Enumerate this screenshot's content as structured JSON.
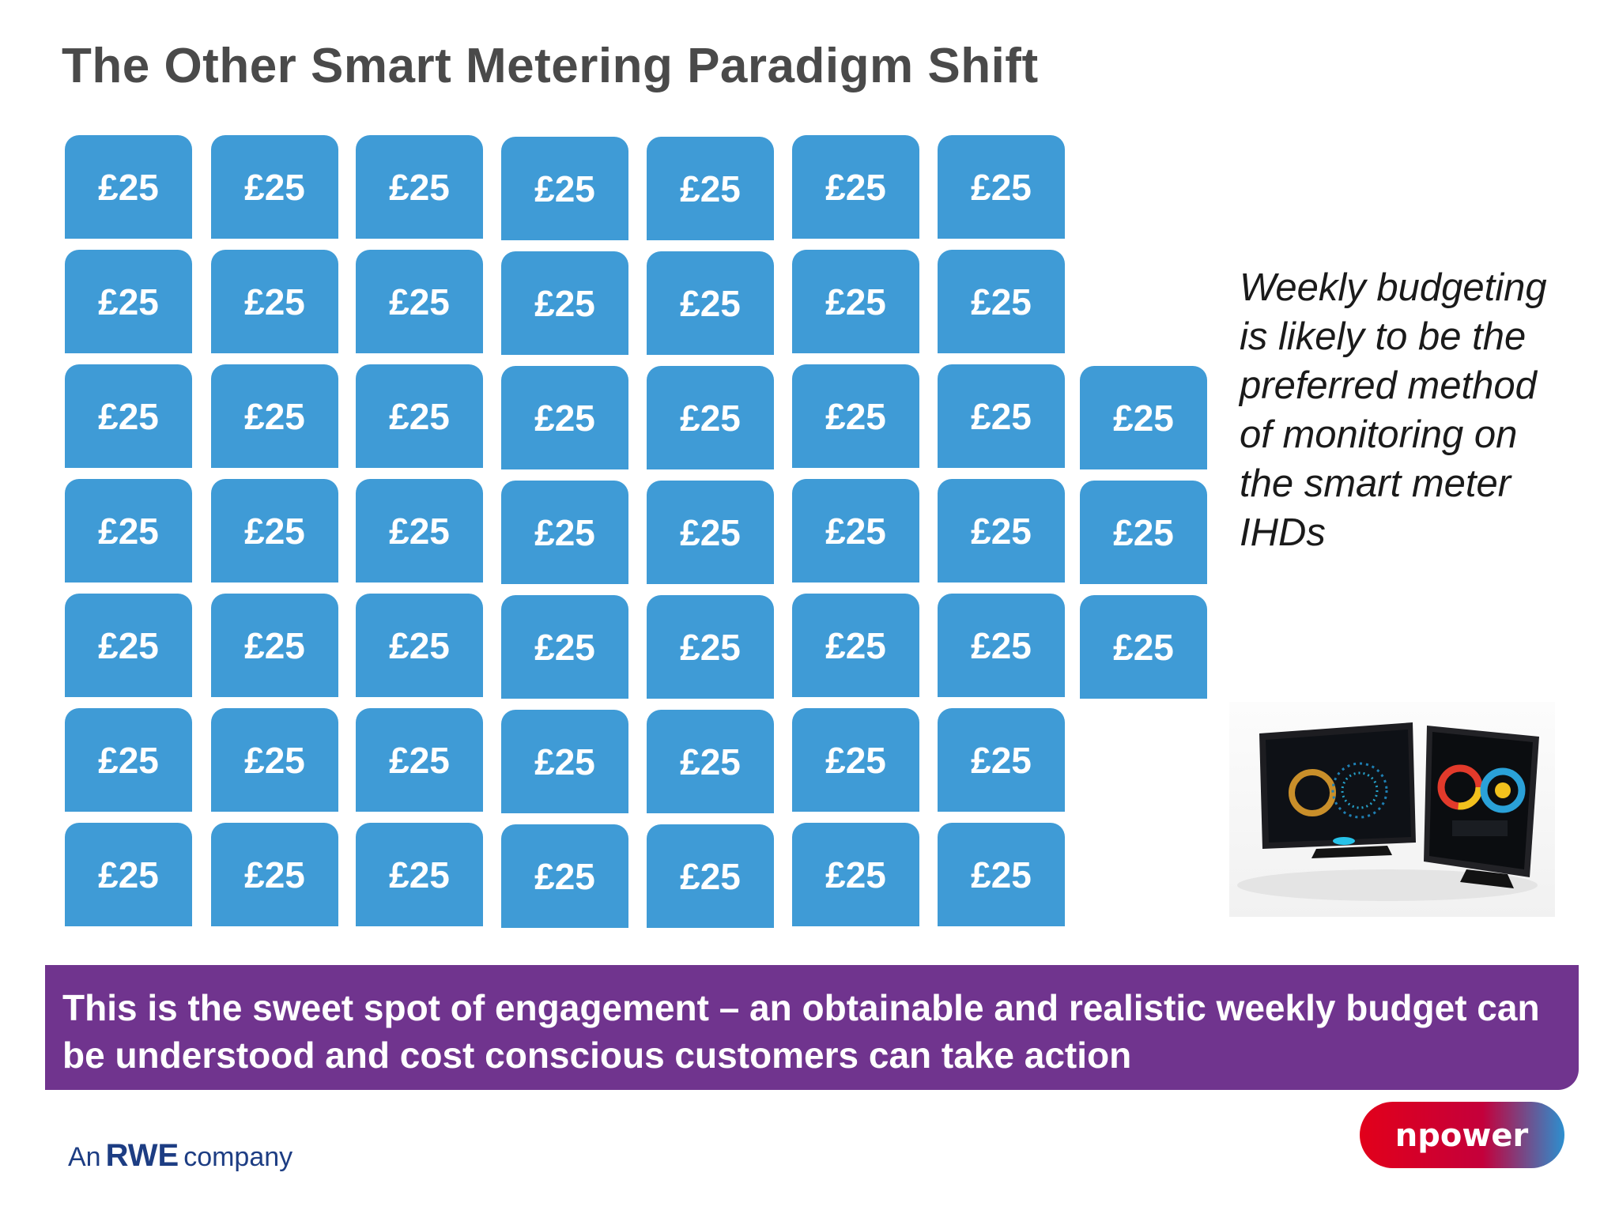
{
  "title": "The Other Smart Metering Paradigm Shift",
  "tile_label": "£25",
  "tile_color": "#3f9bd6",
  "grid": {
    "rows": 7,
    "columns": 8,
    "row_counts": [
      7,
      7,
      8,
      8,
      8,
      7,
      7
    ]
  },
  "side_text": "Weekly budgeting is likely to be the preferred method of monitoring on the smart meter IHDs",
  "product_image": "two smart meter in-home display devices",
  "banner": {
    "text": "This is the sweet spot of engagement – an obtainable and realistic weekly budget can be understood and cost conscious customers can take action",
    "color": "#70348e"
  },
  "footer": {
    "rwe_prefix": "An",
    "rwe_brand": "RWE",
    "rwe_suffix": "company",
    "logo_text": "npower",
    "logo_color": "#e2001a"
  }
}
